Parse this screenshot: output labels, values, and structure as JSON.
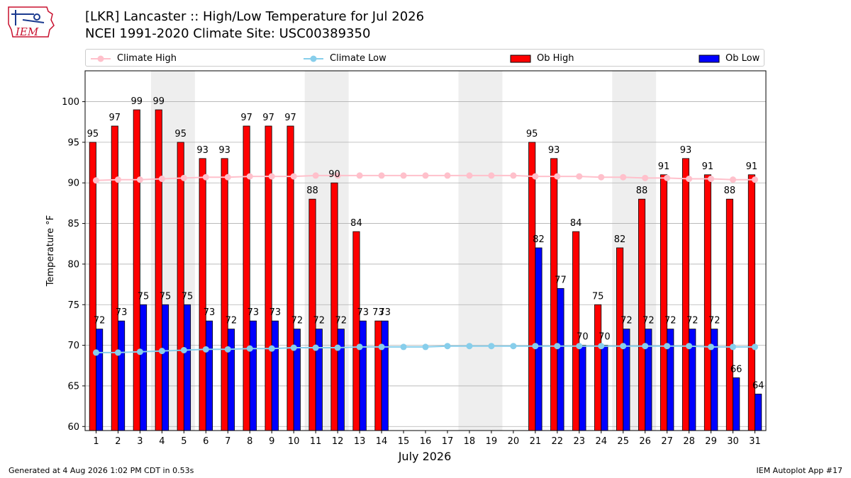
{
  "header": {
    "logo_text": "IEM",
    "title_line1": "[LKR] Lancaster :: High/Low Temperature for Jul 2026",
    "title_line2": "NCEI 1991-2020 Climate Site: USC00389350"
  },
  "footer": {
    "generated": "Generated at 4 Aug 2026 1:02 PM CDT in 0.53s",
    "app": "IEM Autoplot App #17"
  },
  "colors": {
    "climate_high": "#ffc0cb",
    "climate_low": "#87ceeb",
    "ob_high": "#ff0000",
    "ob_low": "#0000ff",
    "weekend_shade": "#eeeeee",
    "grid": "#b0b0b0"
  },
  "chart_data": {
    "type": "bar",
    "xlabel": "July 2026",
    "ylabel": "Temperature °F",
    "ylim": [
      59.5,
      103.8
    ],
    "yticks": [
      60,
      65,
      70,
      75,
      80,
      85,
      90,
      95,
      100
    ],
    "grid": true,
    "legend_placement": "top",
    "days": [
      1,
      2,
      3,
      4,
      5,
      6,
      7,
      8,
      9,
      10,
      11,
      12,
      13,
      14,
      15,
      16,
      17,
      18,
      19,
      20,
      21,
      22,
      23,
      24,
      25,
      26,
      27,
      28,
      29,
      30,
      31
    ],
    "shaded_day_ranges": [
      [
        4,
        5
      ],
      [
        11,
        12
      ],
      [
        18,
        19
      ],
      [
        25,
        26
      ]
    ],
    "series": [
      {
        "name": "Climate High",
        "kind": "line",
        "values": [
          90.3,
          90.4,
          90.4,
          90.5,
          90.6,
          90.7,
          90.7,
          90.8,
          90.8,
          90.8,
          90.9,
          90.9,
          90.9,
          90.9,
          90.9,
          90.9,
          90.9,
          90.9,
          90.9,
          90.9,
          90.8,
          90.8,
          90.8,
          90.7,
          90.7,
          90.6,
          90.6,
          90.5,
          90.5,
          90.4,
          90.4
        ]
      },
      {
        "name": "Climate Low",
        "kind": "line",
        "values": [
          69.1,
          69.1,
          69.2,
          69.3,
          69.4,
          69.5,
          69.5,
          69.6,
          69.6,
          69.7,
          69.7,
          69.7,
          69.8,
          69.8,
          69.8,
          69.8,
          69.9,
          69.9,
          69.9,
          69.9,
          69.9,
          69.9,
          69.9,
          69.9,
          69.9,
          69.9,
          69.9,
          69.9,
          69.8,
          69.8,
          69.8
        ]
      },
      {
        "name": "Ob High",
        "kind": "bar",
        "values": [
          95,
          97,
          99,
          99,
          95,
          93,
          93,
          97,
          97,
          97,
          88,
          90,
          84,
          73,
          null,
          null,
          null,
          null,
          null,
          null,
          95,
          93,
          84,
          75,
          82,
          88,
          91,
          93,
          91,
          88,
          91
        ]
      },
      {
        "name": "Ob Low",
        "kind": "bar",
        "values": [
          72,
          73,
          75,
          75,
          75,
          73,
          72,
          73,
          73,
          72,
          72,
          72,
          73,
          73,
          null,
          null,
          null,
          null,
          null,
          null,
          82,
          77,
          70,
          70,
          72,
          72,
          72,
          72,
          72,
          66,
          64
        ]
      }
    ]
  }
}
